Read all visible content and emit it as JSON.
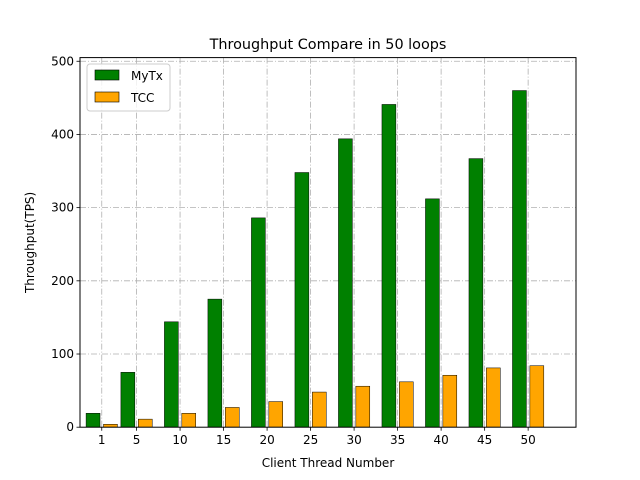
{
  "chart_data": {
    "type": "bar",
    "title": "Throughput Compare in 50 loops",
    "xlabel": "Client Thread Number",
    "ylabel": "Throughput(TPS)",
    "categories": [
      "1",
      "5",
      "10",
      "15",
      "20",
      "25",
      "30",
      "35",
      "40",
      "45",
      "50"
    ],
    "x": [
      1,
      5,
      10,
      15,
      20,
      25,
      30,
      35,
      40,
      45,
      50
    ],
    "xlim": [
      -1.5,
      55.5
    ],
    "ylim": [
      0,
      505
    ],
    "yticks": [
      0,
      100,
      200,
      300,
      400,
      500
    ],
    "grid": true,
    "legend_position": "top-left",
    "series": [
      {
        "name": "MyTx",
        "color": "#008000",
        "values": [
          19,
          75,
          144,
          175,
          286,
          348,
          394,
          441,
          312,
          367,
          460
        ]
      },
      {
        "name": "TCC",
        "color": "#ffa500",
        "values": [
          4,
          11,
          19,
          27,
          35,
          48,
          56,
          62,
          71,
          81,
          84
        ]
      }
    ]
  }
}
